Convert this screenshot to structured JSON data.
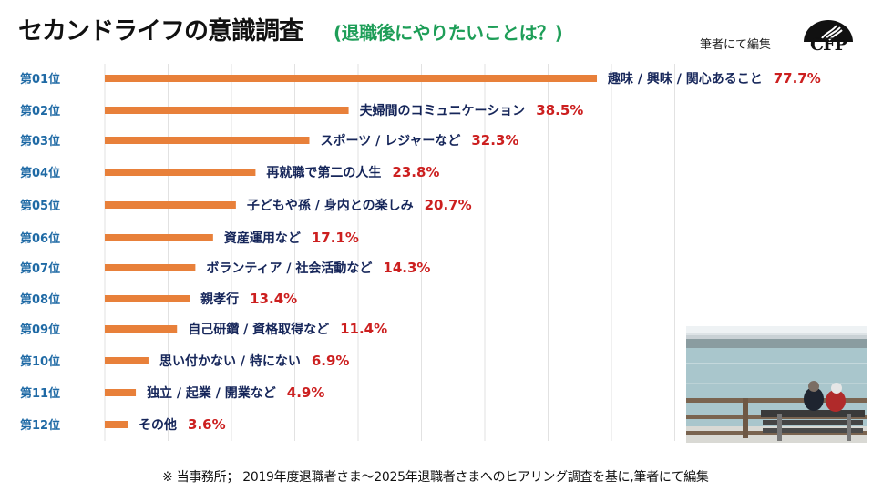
{
  "header": {
    "title": "セカンドライフの意識調査",
    "subtitle": "(退職後にやりたいことは？)",
    "edited_by": "筆者にて編集",
    "logo_text": "CFP"
  },
  "footnote": "※ 当事務所； 2019年度退職者さま～2025年退職者さまへのヒアリング調査を基に,筆者にて編集",
  "photo": {
    "description": "elderly couple on bench by the sea"
  },
  "colors": {
    "bar": "#e8803a",
    "rank": "#1f6aa5",
    "label": "#16265a",
    "percent": "#cc1f1f",
    "subtitle": "#1e9e58",
    "grid": "#e2e2e2"
  },
  "chart_data": {
    "type": "bar",
    "orientation": "horizontal",
    "title": "セカンドライフの意識調査",
    "subtitle": "(退職後にやりたいことは？)",
    "xlabel": "",
    "ylabel": "",
    "unit": "%",
    "xlim": [
      0,
      90
    ],
    "grid": true,
    "grid_step": 10,
    "categories": [
      "第01位",
      "第02位",
      "第03位",
      "第04位",
      "第05位",
      "第06位",
      "第07位",
      "第08位",
      "第09位",
      "第10位",
      "第11位",
      "第12位"
    ],
    "labels": [
      "趣味 / 興味 / 関心あること",
      "夫婦間のコミュニケーション",
      "スポーツ / レジャーなど",
      "再就職で第二の人生",
      "子どもや孫 / 身内との楽しみ",
      "資産運用など",
      "ボランティア / 社会活動など",
      "親孝行",
      "自己研鑽 / 資格取得など",
      "思い付かない / 特にない",
      "独立 / 起業 / 開業など",
      "その他"
    ],
    "values": [
      77.7,
      38.5,
      32.3,
      23.8,
      20.7,
      17.1,
      14.3,
      13.4,
      11.4,
      6.9,
      4.9,
      3.6
    ],
    "value_labels": [
      "77.7%",
      "38.5%",
      "32.3%",
      "23.8%",
      "20.7%",
      "17.1%",
      "14.3%",
      "13.4%",
      "11.4%",
      "6.9%",
      "4.9%",
      "3.6%"
    ]
  }
}
